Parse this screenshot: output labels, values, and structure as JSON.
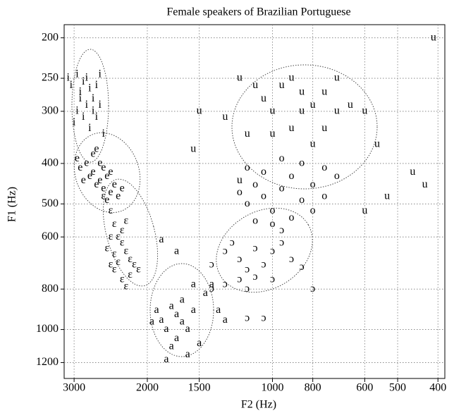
{
  "chart_data": {
    "type": "scatter",
    "title": "Female speakers of Brazilian Portuguese",
    "x_label": "F2 (Hz)",
    "y_label": "F1 (Hz)",
    "xscale": "log",
    "yscale": "log",
    "grid": true,
    "xlim": [
      3170,
      385
    ],
    "ylim": [
      1310,
      186
    ],
    "xticks": [
      3000,
      2000,
      1500,
      1000,
      800,
      600,
      500,
      400
    ],
    "yticks": [
      200,
      250,
      300,
      400,
      500,
      600,
      800,
      1000,
      1200
    ],
    "series": [
      {
        "name": "i",
        "color": "#000000",
        "x": [
          3100,
          3050,
          2950,
          2900,
          2850,
          2800,
          2750,
          2700,
          2650,
          2600,
          2950,
          3000,
          2850,
          2750,
          2700,
          2650,
          2600,
          2550,
          2800,
          2900
        ],
        "values": [
          250,
          260,
          245,
          270,
          255,
          250,
          265,
          280,
          260,
          245,
          300,
          320,
          310,
          330,
          300,
          310,
          290,
          340,
          290,
          280
        ]
      },
      {
        "name": "e",
        "color": "#000000",
        "x": [
          2950,
          2900,
          2800,
          2750,
          2700,
          2650,
          2600,
          2550,
          2500,
          2450,
          2400,
          2350,
          2700,
          2600,
          2500,
          2850,
          2450,
          2300,
          2650,
          2550
        ],
        "values": [
          390,
          410,
          400,
          430,
          420,
          450,
          440,
          460,
          430,
          470,
          450,
          480,
          380,
          400,
          490,
          440,
          420,
          460,
          370,
          410
        ]
      },
      {
        "name": "ɛ",
        "color": "#000000",
        "x": [
          2550,
          2450,
          2400,
          2350,
          2300,
          2250,
          2200,
          2500,
          2450,
          2400,
          2300,
          2250,
          2350,
          2150,
          2200,
          2400,
          2300,
          2100,
          2250,
          2450
        ],
        "values": [
          480,
          520,
          560,
          600,
          620,
          650,
          680,
          640,
          700,
          720,
          760,
          790,
          690,
          700,
          740,
          660,
          580,
          720,
          550,
          600
        ]
      },
      {
        "name": "a",
        "color": "#000000",
        "x": [
          1850,
          1700,
          1900,
          1850,
          1800,
          1750,
          1700,
          1650,
          1600,
          1550,
          1650,
          1700,
          1750,
          1600,
          1500,
          1450,
          1400,
          1550,
          1800,
          1950,
          1300,
          1350
        ],
        "values": [
          610,
          650,
          900,
          950,
          1000,
          880,
          920,
          960,
          1000,
          900,
          850,
          1050,
          1100,
          1150,
          1080,
          820,
          780,
          780,
          1180,
          960,
          950,
          900
        ]
      },
      {
        "name": "ɔ",
        "color": "#000000",
        "x": [
          1400,
          1300,
          1250,
          1200,
          1150,
          1100,
          1050,
          1000,
          950,
          900,
          1150,
          1200,
          1300,
          1400,
          1100,
          1000,
          950,
          850,
          1050,
          1150,
          800
        ],
        "values": [
          700,
          650,
          620,
          680,
          720,
          750,
          700,
          650,
          620,
          680,
          800,
          760,
          780,
          800,
          640,
          760,
          580,
          710,
          940,
          940,
          800
        ]
      },
      {
        "name": "o",
        "color": "#000000",
        "x": [
          1200,
          1150,
          1100,
          1050,
          1000,
          950,
          900,
          850,
          800,
          750,
          700,
          1100,
          1000,
          900,
          850,
          950,
          1150,
          800,
          750,
          1050
        ],
        "values": [
          470,
          500,
          450,
          480,
          520,
          460,
          430,
          490,
          450,
          410,
          430,
          550,
          560,
          540,
          400,
          390,
          410,
          520,
          480,
          420
        ]
      },
      {
        "name": "u",
        "color": "#000000",
        "x": [
          1300,
          1500,
          1550,
          1200,
          1100,
          1050,
          1000,
          950,
          900,
          850,
          800,
          750,
          700,
          650,
          600,
          560,
          1150,
          1000,
          900,
          800,
          750,
          460,
          430,
          530,
          600,
          1200,
          410,
          700,
          850
        ],
        "values": [
          310,
          300,
          370,
          250,
          260,
          280,
          300,
          260,
          250,
          270,
          290,
          270,
          250,
          290,
          300,
          360,
          340,
          340,
          330,
          360,
          330,
          420,
          450,
          480,
          520,
          440,
          200,
          300,
          300
        ]
      }
    ]
  }
}
